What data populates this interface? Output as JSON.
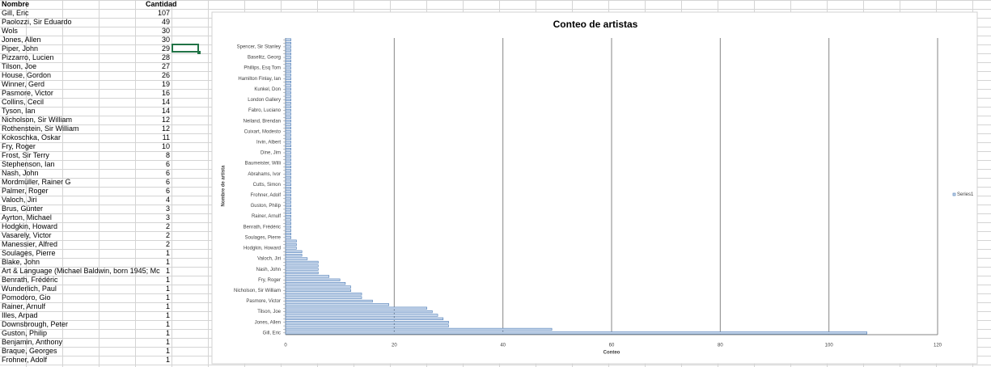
{
  "table": {
    "header": [
      "Nombre",
      "Cantidad"
    ],
    "rows": [
      [
        "Gill, Eric",
        "107"
      ],
      [
        "Paolozzi, Sir Eduardo",
        "49"
      ],
      [
        "Wols",
        "30"
      ],
      [
        "Jones, Allen",
        "30"
      ],
      [
        "Piper, John",
        "29"
      ],
      [
        "Pizzarro, Lucien",
        "28"
      ],
      [
        "Tilson, Joe",
        "27"
      ],
      [
        "House, Gordon",
        "26"
      ],
      [
        "Winner, Gerd",
        "19"
      ],
      [
        "Pasmore, Victor",
        "16"
      ],
      [
        "Collins, Cecil",
        "14"
      ],
      [
        "Tyson, Ian",
        "14"
      ],
      [
        "Nicholson, Sir William",
        "12"
      ],
      [
        "Rothenstein, Sir William",
        "12"
      ],
      [
        "Kokoschka, Oskar",
        "11"
      ],
      [
        "Fry, Roger",
        "10"
      ],
      [
        "Frost, Sir Terry",
        "8"
      ],
      [
        "Stephenson, Ian",
        "6"
      ],
      [
        "Nash, John",
        "6"
      ],
      [
        "Mordmüller, Rainer G",
        "6"
      ],
      [
        "Palmer, Roger",
        "6"
      ],
      [
        "Valoch, Jiri",
        "4"
      ],
      [
        "Brus, Günter",
        "3"
      ],
      [
        "Ayrton, Michael",
        "3"
      ],
      [
        "Hodgkin, Howard",
        "2"
      ],
      [
        "Vasarely, Victor",
        "2"
      ],
      [
        "Manessier, Alfred",
        "2"
      ],
      [
        "Soulages, Pierre",
        "1"
      ],
      [
        "Blake, John",
        "1"
      ],
      [
        "Art & Language (Michael Baldwin, born 1945; Mc",
        "1"
      ],
      [
        "Benrath, Frédéric",
        "1"
      ],
      [
        "Wunderlich, Paul",
        "1"
      ],
      [
        "Pomodoro, Gio",
        "1"
      ],
      [
        "Rainer, Arnulf",
        "1"
      ],
      [
        "Illes, Arpad",
        "1"
      ],
      [
        "Downsbrough, Peter",
        "1"
      ],
      [
        "Guston, Philip",
        "1"
      ],
      [
        "Benjamin, Anthony",
        "1"
      ],
      [
        "Braque, Georges",
        "1"
      ],
      [
        "Frohner, Adolf",
        "1"
      ]
    ]
  },
  "chart_data": {
    "type": "barh",
    "title": "Conteo de artistas",
    "x_label": "Conteo",
    "y_label": "Nombre de artista",
    "categories": [
      "Gill, Eric",
      null,
      null,
      "Jones, Allen",
      null,
      null,
      "Tilson, Joe",
      null,
      null,
      "Pasmore, Victor",
      null,
      null,
      "Nicholson, Sir William",
      null,
      null,
      "Fry, Roger",
      null,
      null,
      "Nash, John",
      null,
      null,
      "Valoch, Jiri",
      null,
      null,
      "Hodgkin, Howard",
      null,
      null,
      "Soulages, Pierre",
      null,
      null,
      "Benrath, Frédéric",
      null,
      null,
      "Rainer, Arnulf",
      null,
      null,
      "Guston, Philip",
      null,
      null,
      "Frohner, Adolf",
      null,
      null,
      "Cutts, Simon",
      null,
      null,
      "Abrahams, Ivor",
      null,
      null,
      "Baumeister, Willi",
      null,
      null,
      "Dine, Jim",
      null,
      null,
      "Irvin, Albert",
      null,
      null,
      "Cuixart, Modesto",
      null,
      null,
      "Neiland, Brendan",
      null,
      null,
      "Fabro, Luciano",
      null,
      null,
      "London Gallery",
      null,
      null,
      "Kunkel, Don",
      null,
      null,
      "Hamilton Finlay, Ian",
      null,
      null,
      "Phillips, Esq Tom",
      null,
      null,
      "Baselitz, Georg",
      null,
      null,
      "Spencer, Sir Stanley",
      null,
      null
    ],
    "series": [
      {
        "name": "Series1",
        "color": "#4a7ab5",
        "values": [
          107,
          49,
          30,
          30,
          29,
          28,
          27,
          26,
          19,
          16,
          14,
          14,
          12,
          12,
          11,
          10,
          8,
          6,
          6,
          6,
          6,
          4,
          3,
          3,
          2,
          2,
          2,
          1,
          1,
          1,
          1,
          1,
          1,
          1,
          1,
          1,
          1,
          1,
          1,
          1,
          1,
          1,
          1,
          1,
          1,
          1,
          1,
          1,
          1,
          1,
          1,
          1,
          1,
          1,
          1,
          1,
          1,
          1,
          1,
          1,
          1,
          1,
          1,
          1,
          1,
          1,
          1,
          1,
          1,
          1,
          1,
          1,
          1,
          1,
          1,
          1,
          1,
          1,
          1,
          1,
          1,
          1,
          1,
          1
        ]
      }
    ],
    "xlim": [
      0,
      120
    ],
    "xticks": [
      0,
      20,
      40,
      60,
      80,
      100,
      120
    ],
    "grid": true,
    "legend": "right"
  }
}
